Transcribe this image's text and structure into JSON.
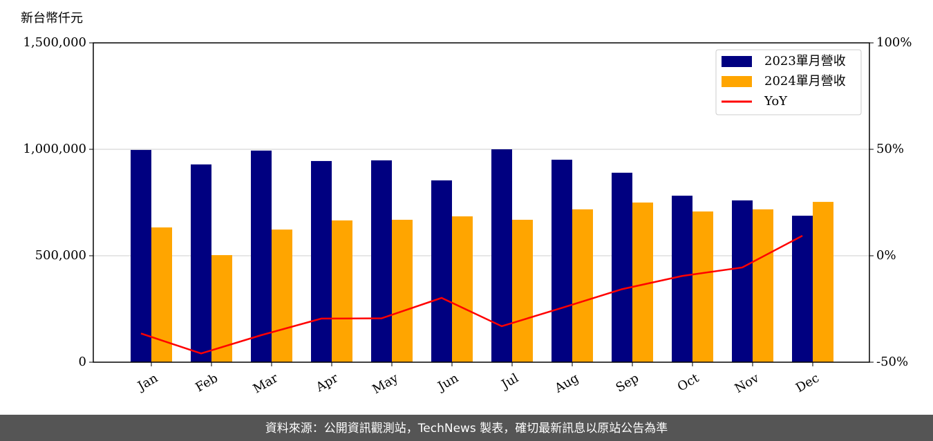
{
  "chart_data": {
    "type": "bar",
    "y_label": "新台幣仟元",
    "categories": [
      "Jan",
      "Feb",
      "Mar",
      "Apr",
      "May",
      "Jun",
      "Jul",
      "Aug",
      "Sep",
      "Oct",
      "Nov",
      "Dec"
    ],
    "series": [
      {
        "name": "2023單月營收",
        "color": "#000080",
        "values": [
          997000,
          929000,
          994000,
          945000,
          948000,
          854000,
          1000000,
          951000,
          890000,
          782000,
          760000,
          688000
        ]
      },
      {
        "name": "2024單月營收",
        "color": "#ffa500",
        "values": [
          633000,
          503000,
          623000,
          666000,
          669000,
          685000,
          669000,
          718000,
          750000,
          708000,
          718000,
          753000
        ]
      },
      {
        "name": "YoY",
        "type": "line",
        "axis": "y2",
        "color": "#ff0000",
        "values": [
          -36.5,
          -45.9,
          -37.3,
          -29.5,
          -29.4,
          -19.8,
          -33.1,
          -24.5,
          -15.7,
          -9.5,
          -5.5,
          9.4
        ]
      }
    ],
    "ylim": [
      0,
      1500000
    ],
    "yticks": [
      0,
      {
        "value": 500000,
        "label": "500,000"
      },
      {
        "value": 1000000,
        "label": "1,000,000"
      },
      {
        "value": 1500000,
        "label": "1,500,000"
      }
    ],
    "y2lim": [
      -50,
      100
    ],
    "y2ticks": [
      {
        "value": -50,
        "label": "-50%"
      },
      {
        "value": 0,
        "label": "0%"
      },
      {
        "value": 50,
        "label": "50%"
      },
      {
        "value": 100,
        "label": "100%"
      }
    ],
    "grid": true,
    "legend": "upper right"
  },
  "footer": "資料來源：公開資訊觀測站，TechNews 製表，確切最新訊息以原站公告為準"
}
